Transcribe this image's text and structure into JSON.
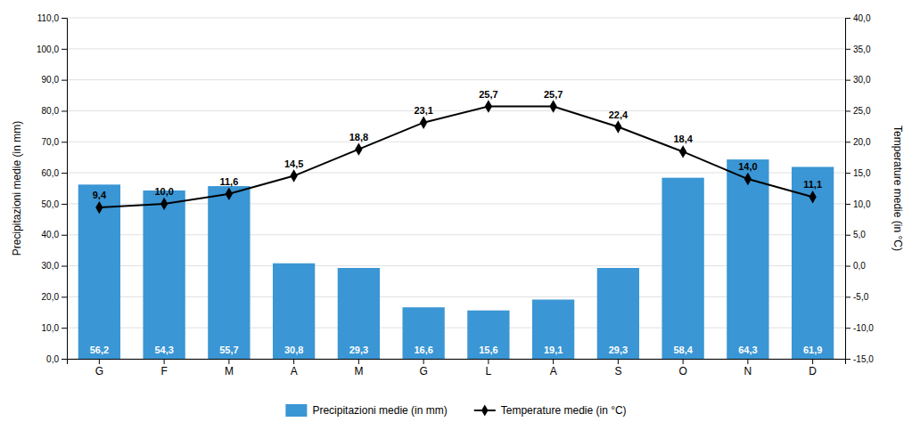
{
  "chart_data": {
    "type": "bar",
    "categories": [
      "G",
      "F",
      "M",
      "A",
      "M",
      "G",
      "L",
      "A",
      "S",
      "O",
      "N",
      "D"
    ],
    "series": [
      {
        "name": "Precipitazioni medie (in mm)",
        "type": "bar",
        "color": "#3A96D4",
        "values": [
          56.2,
          54.3,
          55.7,
          30.8,
          29.3,
          16.6,
          15.6,
          19.1,
          29.3,
          58.4,
          64.3,
          61.9
        ],
        "value_labels": [
          "56,2",
          "54,3",
          "55,7",
          "30,8",
          "29,3",
          "16,6",
          "15,6",
          "19,1",
          "29,3",
          "58,4",
          "64,3",
          "61,9"
        ]
      },
      {
        "name": "Temperature medie (in °C)",
        "type": "line",
        "color": "#000000",
        "marker": "diamond",
        "axis": "y2",
        "values": [
          9.4,
          10.0,
          11.6,
          14.5,
          18.8,
          23.1,
          25.7,
          25.7,
          22.4,
          18.4,
          14.0,
          11.1
        ],
        "value_labels": [
          "9,4",
          "10,0",
          "11,6",
          "14,5",
          "18,8",
          "23,1",
          "25,7",
          "25,7",
          "22,4",
          "18,4",
          "14,0",
          "11,1"
        ]
      }
    ],
    "ylabel": "Precipitazioni medie (in mm)",
    "y2label": "Temperature medie (in °C)",
    "ylim": [
      0.0,
      110.0
    ],
    "yticks": [
      {
        "value": 0.0,
        "label": "0,0"
      },
      {
        "value": 10.0,
        "label": "10,0"
      },
      {
        "value": 20.0,
        "label": "20,0"
      },
      {
        "value": 30.0,
        "label": "30,0"
      },
      {
        "value": 40.0,
        "label": "40,0"
      },
      {
        "value": 50.0,
        "label": "50,0"
      },
      {
        "value": 60.0,
        "label": "60,0"
      },
      {
        "value": 70.0,
        "label": "70,0"
      },
      {
        "value": 80.0,
        "label": "80,0"
      },
      {
        "value": 90.0,
        "label": "90,0"
      },
      {
        "value": 100.0,
        "label": "100,0"
      },
      {
        "value": 110.0,
        "label": "110,0"
      }
    ],
    "y2lim": [
      -15.0,
      40.0
    ],
    "y2ticks": [
      {
        "value": -15.0,
        "label": "-15,0"
      },
      {
        "value": -10.0,
        "label": "-10,0"
      },
      {
        "value": -5.0,
        "label": "-5,0"
      },
      {
        "value": 0.0,
        "label": "0,0"
      },
      {
        "value": 5.0,
        "label": "5,0"
      },
      {
        "value": 10.0,
        "label": "10,0"
      },
      {
        "value": 15.0,
        "label": "15,0"
      },
      {
        "value": 20.0,
        "label": "20,0"
      },
      {
        "value": 25.0,
        "label": "25,0"
      },
      {
        "value": 30.0,
        "label": "30,0"
      },
      {
        "value": 35.0,
        "label": "35,0"
      },
      {
        "value": 40.0,
        "label": "40,0"
      }
    ],
    "grid": true,
    "legend": "bottom",
    "data_labels": true
  }
}
